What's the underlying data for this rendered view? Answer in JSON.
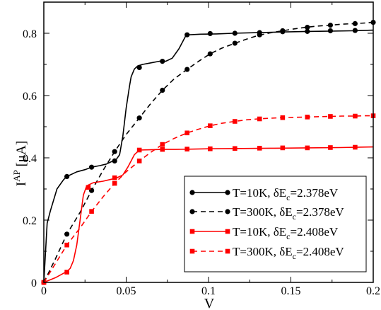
{
  "chart_data": {
    "type": "line",
    "xlabel": "V",
    "ylabel_main": "I",
    "ylabel_sup": "AP",
    "ylabel_unit": " [μA]",
    "xlim": [
      0,
      0.2
    ],
    "ylim": [
      0,
      0.9
    ],
    "xticks": [
      {
        "v": 0,
        "label": "0"
      },
      {
        "v": 0.05,
        "label": "0.05"
      },
      {
        "v": 0.1,
        "label": "0.1"
      },
      {
        "v": 0.15,
        "label": "0.15"
      },
      {
        "v": 0.2,
        "label": "0.2"
      }
    ],
    "yticks": [
      {
        "v": 0,
        "label": "0"
      },
      {
        "v": 0.2,
        "label": "0.2"
      },
      {
        "v": 0.4,
        "label": "0.4"
      },
      {
        "v": 0.6,
        "label": "0.6"
      },
      {
        "v": 0.8,
        "label": "0.8"
      }
    ],
    "grid": false,
    "legend_position": "bottom-right",
    "series": [
      {
        "legend_main": "T=10K, δE",
        "legend_sub": "c",
        "legend_tail": "=2.378eV",
        "color": "#000000",
        "dash": "solid",
        "marker": "circle",
        "x": [
          0,
          0.002,
          0.004,
          0.008,
          0.012,
          0.014,
          0.02,
          0.025,
          0.029,
          0.034,
          0.038,
          0.042,
          0.044,
          0.046,
          0.048,
          0.05,
          0.052,
          0.053,
          0.055,
          0.057,
          0.06,
          0.065,
          0.07,
          0.074,
          0.078,
          0.082,
          0.086,
          0.088,
          0.095,
          0.105,
          0.115,
          0.13,
          0.145,
          0.16,
          0.175,
          0.187,
          0.2
        ],
        "y": [
          0,
          0.19,
          0.23,
          0.3,
          0.33,
          0.34,
          0.355,
          0.362,
          0.37,
          0.375,
          0.38,
          0.39,
          0.395,
          0.41,
          0.47,
          0.56,
          0.63,
          0.66,
          0.685,
          0.695,
          0.7,
          0.705,
          0.71,
          0.71,
          0.72,
          0.75,
          0.79,
          0.795,
          0.797,
          0.798,
          0.8,
          0.802,
          0.804,
          0.806,
          0.807,
          0.808,
          0.81
        ],
        "marker_x": [
          0,
          0.014,
          0.029,
          0.043,
          0.058,
          0.072,
          0.087,
          0.101,
          0.116,
          0.131,
          0.145,
          0.16,
          0.174,
          0.189
        ],
        "marker_y": [
          0,
          0.34,
          0.37,
          0.39,
          0.69,
          0.71,
          0.795,
          0.799,
          0.8,
          0.802,
          0.805,
          0.806,
          0.808,
          0.809
        ]
      },
      {
        "legend_main": "T=300K, δE",
        "legend_sub": "c",
        "legend_tail": "=2.378eV",
        "color": "#000000",
        "dash": "dashed",
        "marker": "circle",
        "x": [
          0,
          0.007,
          0.014,
          0.022,
          0.029,
          0.036,
          0.043,
          0.05,
          0.058,
          0.065,
          0.072,
          0.079,
          0.087,
          0.094,
          0.101,
          0.108,
          0.116,
          0.123,
          0.13,
          0.137,
          0.145,
          0.152,
          0.159,
          0.166,
          0.174,
          0.181,
          0.188,
          0.195,
          0.2
        ],
        "y": [
          0,
          0.075,
          0.155,
          0.225,
          0.295,
          0.36,
          0.42,
          0.475,
          0.528,
          0.575,
          0.617,
          0.653,
          0.684,
          0.71,
          0.734,
          0.752,
          0.768,
          0.781,
          0.793,
          0.801,
          0.808,
          0.814,
          0.819,
          0.823,
          0.826,
          0.829,
          0.831,
          0.833,
          0.835
        ],
        "marker_x": [
          0,
          0.014,
          0.029,
          0.043,
          0.058,
          0.072,
          0.087,
          0.101,
          0.116,
          0.131,
          0.145,
          0.16,
          0.174,
          0.189,
          0.2
        ],
        "marker_y": [
          0,
          0.155,
          0.295,
          0.42,
          0.528,
          0.617,
          0.684,
          0.734,
          0.768,
          0.795,
          0.808,
          0.819,
          0.826,
          0.831,
          0.835
        ]
      },
      {
        "legend_main": "T=10K, δE",
        "legend_sub": "c",
        "legend_tail": "=2.408eV",
        "color": "#ff0000",
        "dash": "solid",
        "marker": "square",
        "x": [
          0,
          0.007,
          0.014,
          0.016,
          0.018,
          0.02,
          0.022,
          0.024,
          0.026,
          0.028,
          0.03,
          0.036,
          0.04,
          0.044,
          0.048,
          0.051,
          0.053,
          0.055,
          0.058,
          0.065,
          0.072,
          0.08,
          0.09,
          0.1,
          0.12,
          0.14,
          0.16,
          0.18,
          0.2
        ],
        "y": [
          0,
          0.015,
          0.035,
          0.045,
          0.07,
          0.12,
          0.2,
          0.28,
          0.31,
          0.315,
          0.32,
          0.325,
          0.33,
          0.335,
          0.345,
          0.37,
          0.39,
          0.41,
          0.425,
          0.426,
          0.427,
          0.427,
          0.428,
          0.429,
          0.43,
          0.431,
          0.432,
          0.433,
          0.435
        ],
        "marker_x": [
          0,
          0.014,
          0.027,
          0.043,
          0.058,
          0.072,
          0.087,
          0.101,
          0.116,
          0.131,
          0.145,
          0.16,
          0.174,
          0.189
        ],
        "marker_y": [
          0,
          0.033,
          0.305,
          0.336,
          0.425,
          0.427,
          0.428,
          0.429,
          0.43,
          0.431,
          0.432,
          0.432,
          0.433,
          0.434
        ]
      },
      {
        "legend_main": "T=300K, δE",
        "legend_sub": "c",
        "legend_tail": "=2.408eV",
        "color": "#ff0000",
        "dash": "dashed",
        "marker": "square",
        "x": [
          0,
          0.007,
          0.014,
          0.022,
          0.029,
          0.036,
          0.043,
          0.05,
          0.058,
          0.065,
          0.072,
          0.079,
          0.087,
          0.094,
          0.101,
          0.108,
          0.116,
          0.123,
          0.13,
          0.137,
          0.145,
          0.152,
          0.159,
          0.166,
          0.174,
          0.181,
          0.188,
          0.195,
          0.2
        ],
        "y": [
          0,
          0.06,
          0.12,
          0.175,
          0.228,
          0.275,
          0.318,
          0.355,
          0.39,
          0.418,
          0.443,
          0.462,
          0.48,
          0.492,
          0.503,
          0.511,
          0.517,
          0.522,
          0.525,
          0.527,
          0.529,
          0.53,
          0.531,
          0.532,
          0.533,
          0.534,
          0.534,
          0.535,
          0.535
        ],
        "marker_x": [
          0,
          0.014,
          0.029,
          0.043,
          0.058,
          0.072,
          0.087,
          0.101,
          0.116,
          0.131,
          0.145,
          0.16,
          0.174,
          0.189,
          0.2
        ],
        "marker_y": [
          0,
          0.12,
          0.228,
          0.318,
          0.39,
          0.443,
          0.48,
          0.503,
          0.517,
          0.525,
          0.529,
          0.531,
          0.533,
          0.534,
          0.535
        ]
      }
    ]
  }
}
